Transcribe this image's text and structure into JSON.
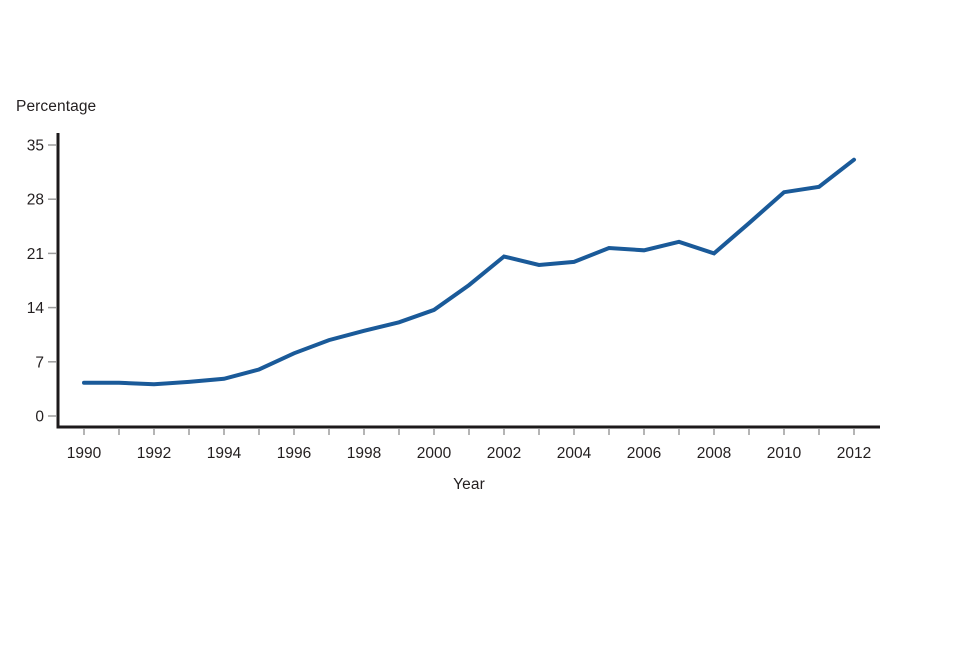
{
  "chart_data": {
    "type": "line",
    "title": "",
    "xlabel": "Year",
    "ylabel": "Percentage",
    "x": [
      1990,
      1991,
      1992,
      1993,
      1994,
      1995,
      1996,
      1997,
      1998,
      1999,
      2000,
      2001,
      2002,
      2003,
      2004,
      2005,
      2006,
      2007,
      2008,
      2009,
      2010,
      2011,
      2012
    ],
    "series": [
      {
        "name": "percentage",
        "values": [
          4.3,
          4.3,
          4.1,
          4.4,
          4.8,
          6.0,
          8.1,
          9.8,
          11.0,
          12.1,
          13.7,
          16.9,
          20.6,
          19.5,
          19.9,
          21.7,
          21.4,
          22.5,
          21.0,
          24.9,
          28.9,
          29.6,
          33.1
        ]
      }
    ],
    "xlim": [
      1990,
      2012
    ],
    "ylim": [
      0,
      35
    ],
    "yticks": [
      0,
      7,
      14,
      21,
      28,
      35
    ],
    "xtick_labels": [
      1990,
      1992,
      1994,
      1996,
      1998,
      2000,
      2002,
      2004,
      2006,
      2008,
      2010,
      2012
    ],
    "grid": false,
    "legend": "none",
    "line_color": "#1a5a99",
    "axis_color": "#1c1a1b",
    "tick_color": "#9c9c9c",
    "text_color": "#231f20"
  }
}
